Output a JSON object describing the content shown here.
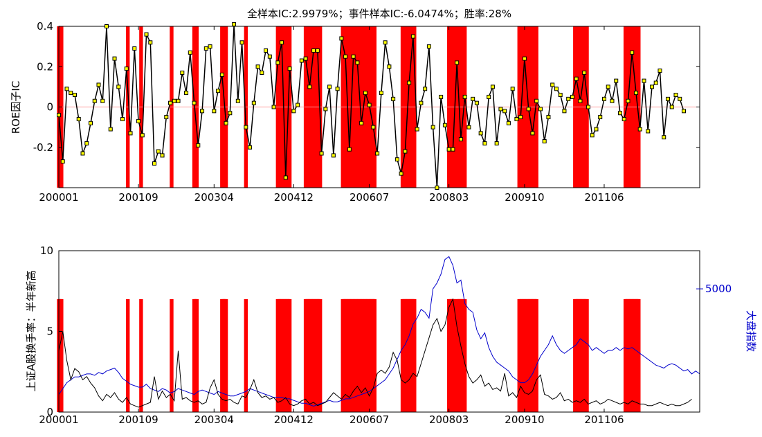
{
  "chart_data": [
    {
      "type": "line",
      "title": "全样本IC:2.9979%；事件样本IC:-6.0474%；胜率:28%",
      "xlabel": "",
      "ylabel": "ROE因子IC",
      "x_ticks": [
        "200001",
        "200109",
        "200304",
        "200412",
        "200607",
        "200803",
        "200910",
        "201106"
      ],
      "y_ticks": [
        "-0.2",
        "0",
        "0.2",
        "0.4"
      ],
      "ylim": [
        -0.4,
        0.4
      ],
      "zero_line": true,
      "colors": {
        "line": "#000000",
        "marker": "#ffff00",
        "event": "#ff0000",
        "zero": "#ff9999"
      },
      "series": [
        {
          "values": [
            -0.04,
            -0.27,
            0.09,
            0.07,
            0.06,
            -0.06,
            -0.23,
            -0.18,
            -0.08,
            0.03,
            0.11,
            0.03,
            0.4,
            -0.11,
            0.24,
            0.1,
            -0.06,
            0.19,
            -0.13,
            0.29,
            -0.07,
            -0.14,
            0.36,
            0.32,
            -0.28,
            -0.22,
            -0.24,
            -0.05,
            0.02,
            0.03,
            0.03,
            0.17,
            0.07,
            0.27,
            0.02,
            -0.19,
            -0.02,
            0.29,
            0.3,
            -0.02,
            0.08,
            0.16,
            -0.08,
            -0.03,
            0.41,
            0.03,
            0.32,
            -0.1,
            -0.2,
            0.02,
            0.2,
            0.17,
            0.28,
            0.25,
            0.0,
            0.22,
            0.32,
            -0.35,
            0.19,
            -0.02,
            0.01,
            0.23,
            0.24,
            0.1,
            0.28,
            0.28,
            -0.23,
            -0.01,
            0.1,
            -0.24,
            0.09,
            0.34,
            0.25,
            -0.21,
            0.25,
            0.22,
            -0.08,
            0.07,
            0.01,
            -0.1,
            -0.23,
            0.07,
            0.32,
            0.2,
            0.04,
            -0.26,
            -0.33,
            -0.22,
            0.12,
            0.35,
            -0.11,
            0.02,
            0.09,
            0.3,
            -0.1,
            -0.4,
            0.05,
            -0.09,
            -0.21,
            -0.21,
            0.22,
            -0.16,
            0.05,
            -0.1,
            0.04,
            0.02,
            -0.13,
            -0.18,
            0.05,
            0.1,
            -0.18,
            -0.01,
            -0.02,
            -0.08,
            0.09,
            -0.06,
            -0.05,
            0.24,
            -0.01,
            -0.13,
            0.03,
            -0.01,
            -0.17,
            -0.05,
            0.11,
            0.09,
            0.06,
            -0.02,
            0.04,
            0.05,
            0.14,
            0.03,
            0.17,
            0.0,
            -0.14,
            -0.11,
            -0.05,
            0.04,
            0.1,
            0.03,
            0.13,
            -0.03,
            -0.06,
            0.03,
            0.27,
            0.07,
            -0.11,
            0.13,
            -0.12,
            0.1,
            0.12,
            0.18,
            -0.15,
            0.04,
            0.0,
            0.06,
            0.04,
            -0.02
          ]
        }
      ],
      "event_months": [
        0,
        1,
        2,
        52,
        62,
        85,
        102,
        103,
        104,
        123,
        124,
        125,
        126,
        141,
        165,
        166,
        167,
        168,
        169,
        170,
        171,
        172,
        173,
        174,
        186,
        187,
        188,
        189,
        190,
        191,
        192,
        193,
        194,
        195,
        196,
        197,
        214,
        215,
        216,
        217,
        218,
        219,
        220,
        221,
        222,
        223,
        224,
        225,
        226,
        227,
        228,
        229,
        230,
        231,
        232,
        233,
        234,
        235,
        236,
        237,
        238,
        259,
        260,
        261,
        262,
        263,
        264,
        265,
        266,
        267,
        268,
        294,
        295,
        296,
        297,
        298,
        300,
        301,
        302,
        303,
        304,
        305,
        306,
        347,
        348,
        349,
        350,
        351,
        352,
        353,
        354,
        355,
        356,
        357,
        358,
        359,
        360,
        389,
        390,
        391,
        392,
        393,
        394,
        395,
        396,
        397,
        398,
        427,
        428,
        429,
        430,
        431,
        432,
        433,
        434,
        435,
        436,
        437
      ]
    },
    {
      "type": "line",
      "title": "",
      "xlabel": "",
      "ylabel": "上证A股换手率：半年新高",
      "ylabel_right": "大盘指数",
      "x_ticks": [
        "200001",
        "200109",
        "200304",
        "200412",
        "200607",
        "200803",
        "200910",
        "201106"
      ],
      "y_ticks": [
        "0",
        "5",
        "10"
      ],
      "y_ticks_right": [
        "5000"
      ],
      "ylim": [
        0,
        10
      ],
      "ylim_right": [
        800,
        6300
      ],
      "event_level": 7,
      "colors": {
        "turnover": "#000000",
        "index": "#0000cc",
        "event": "#ff0000"
      },
      "series": [
        {
          "values": [
            3.8,
            5.0,
            3.2,
            2.0,
            2.7,
            2.5,
            2.0,
            2.2,
            1.8,
            1.5,
            1.0,
            0.7,
            1.1,
            0.9,
            1.2,
            0.8,
            0.6,
            0.9,
            0.5,
            0.4,
            0.3,
            0.4,
            0.5,
            0.6,
            2.2,
            0.8,
            1.3,
            0.9,
            1.1,
            0.7,
            3.8,
            0.8,
            0.9,
            0.7,
            0.6,
            0.7,
            0.5,
            0.6,
            1.5,
            2.0,
            1.1,
            0.8,
            0.7,
            0.8,
            0.6,
            0.5,
            1.0,
            0.9,
            1.4,
            2.0,
            1.2,
            0.9,
            1.0,
            0.8,
            0.9,
            0.6,
            0.7,
            0.9,
            0.5,
            0.4,
            0.5,
            0.7,
            0.8,
            0.5,
            0.6,
            0.4,
            0.5,
            0.6,
            0.9,
            1.2,
            1.0,
            0.8,
            1.1,
            0.9,
            1.3,
            1.6,
            1.2,
            1.5,
            1.0,
            1.5,
            2.4,
            2.6,
            2.4,
            2.8,
            3.7,
            3.2,
            2.0,
            1.8,
            2.0,
            2.4,
            2.2,
            3.0,
            3.8,
            4.6,
            5.4,
            5.8,
            5.0,
            5.4,
            6.5,
            7.0,
            5.3,
            4.1,
            3.0,
            2.2,
            1.8,
            2.0,
            2.3,
            1.6,
            1.8,
            1.4,
            1.5,
            1.3,
            2.4,
            1.0,
            1.2,
            0.9,
            1.6,
            1.2,
            1.1,
            1.3,
            2.0,
            2.3,
            1.1,
            1.0,
            0.8,
            0.9,
            1.2,
            0.7,
            0.8,
            0.6,
            0.7,
            0.6,
            0.8,
            0.5,
            0.6,
            0.7,
            0.5,
            0.6,
            0.8,
            0.7,
            0.6,
            0.5,
            0.6,
            0.5,
            0.7,
            0.6,
            0.5,
            0.5,
            0.4,
            0.4,
            0.5,
            0.6,
            0.5,
            0.4,
            0.5,
            0.4,
            0.4,
            0.5,
            0.6,
            0.8
          ]
        },
        {
          "values": [
            1400,
            1600,
            1800,
            1900,
            2000,
            2000,
            2050,
            2100,
            2100,
            2050,
            2150,
            2100,
            2200,
            2250,
            2300,
            2150,
            1950,
            1850,
            1750,
            1700,
            1650,
            1650,
            1750,
            1600,
            1550,
            1500,
            1600,
            1550,
            1450,
            1500,
            1600,
            1550,
            1500,
            1450,
            1400,
            1500,
            1550,
            1500,
            1450,
            1400,
            1500,
            1450,
            1400,
            1350,
            1350,
            1400,
            1450,
            1500,
            1600,
            1550,
            1500,
            1450,
            1400,
            1350,
            1300,
            1300,
            1300,
            1250,
            1250,
            1200,
            1150,
            1100,
            1100,
            1050,
            1000,
            1050,
            1100,
            1150,
            1200,
            1150,
            1150,
            1200,
            1250,
            1250,
            1300,
            1350,
            1400,
            1450,
            1500,
            1600,
            1700,
            1800,
            1900,
            2100,
            2300,
            2600,
            2900,
            3100,
            3400,
            3800,
            4000,
            4300,
            4200,
            4000,
            5000,
            5200,
            5500,
            6000,
            6100,
            5800,
            5200,
            5300,
            4500,
            4300,
            4200,
            3600,
            3300,
            3500,
            3000,
            2700,
            2500,
            2400,
            2300,
            2200,
            2000,
            1900,
            1800,
            1800,
            1900,
            2100,
            2400,
            2700,
            2900,
            3100,
            3400,
            3100,
            2900,
            2800,
            2900,
            3000,
            3100,
            3300,
            3200,
            3100,
            2900,
            3000,
            2900,
            2800,
            2900,
            2900,
            3000,
            2900,
            3000,
            2950,
            3000,
            2900,
            2800,
            2700,
            2600,
            2500,
            2400,
            2350,
            2300,
            2400,
            2450,
            2400,
            2300,
            2200,
            2250,
            2100,
            2200,
            2100
          ]
        }
      ],
      "event_months": [
        0,
        1,
        2,
        52,
        62,
        85,
        102,
        103,
        104,
        123,
        124,
        125,
        126,
        141,
        165,
        166,
        167,
        168,
        169,
        170,
        171,
        172,
        173,
        174,
        186,
        187,
        188,
        189,
        190,
        191,
        192,
        193,
        194,
        195,
        196,
        197,
        214,
        215,
        216,
        217,
        218,
        219,
        220,
        221,
        222,
        223,
        224,
        225,
        226,
        227,
        228,
        229,
        230,
        231,
        232,
        233,
        234,
        235,
        236,
        237,
        238,
        259,
        260,
        261,
        262,
        263,
        264,
        265,
        266,
        267,
        268,
        294,
        295,
        296,
        297,
        298,
        300,
        301,
        302,
        303,
        304,
        305,
        306,
        347,
        348,
        349,
        350,
        351,
        352,
        353,
        354,
        355,
        356,
        357,
        358,
        359,
        360,
        389,
        390,
        391,
        392,
        393,
        394,
        395,
        396,
        397,
        398,
        427,
        428,
        429,
        430,
        431,
        432,
        433,
        434,
        435,
        436,
        437
      ]
    }
  ]
}
